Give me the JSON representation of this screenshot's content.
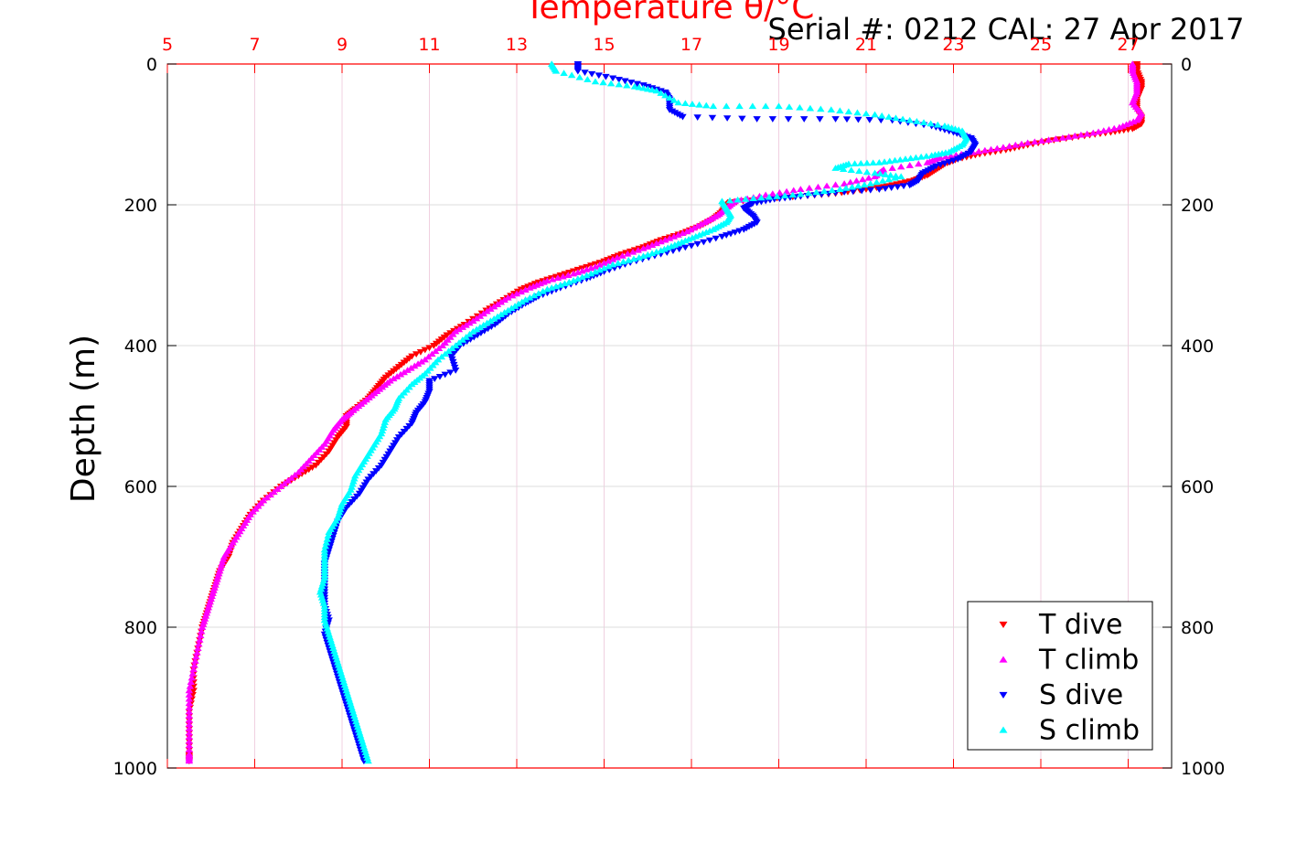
{
  "chart_data": {
    "type": "scatter",
    "title": "Serial #: 0212  CAL: 27 Apr 2017",
    "xlabel": "Temperature θ/°C",
    "ylabel": "Depth (m)",
    "xlim": [
      5,
      28
    ],
    "ylim": [
      1000,
      0
    ],
    "x_ticks": [
      "5",
      "7",
      "9",
      "11",
      "13",
      "15",
      "17",
      "19",
      "21",
      "23",
      "25",
      "27"
    ],
    "y_ticks": [
      "0",
      "200",
      "400",
      "600",
      "800",
      "1000"
    ],
    "grid": true,
    "legend_position": "bottom-right",
    "series": [
      {
        "name": "T dive",
        "marker": "triangle-down",
        "color": "#ff0000",
        "points": [
          [
            27.2,
            0
          ],
          [
            27.2,
            10
          ],
          [
            27.3,
            25
          ],
          [
            27.3,
            35
          ],
          [
            27.2,
            50
          ],
          [
            27.2,
            65
          ],
          [
            27.3,
            75
          ],
          [
            27.3,
            85
          ],
          [
            27.1,
            92
          ],
          [
            26.6,
            97
          ],
          [
            26.0,
            102
          ],
          [
            25.3,
            108
          ],
          [
            24.7,
            115
          ],
          [
            24.2,
            122
          ],
          [
            23.6,
            128
          ],
          [
            23.1,
            135
          ],
          [
            22.8,
            142
          ],
          [
            22.6,
            150
          ],
          [
            22.4,
            158
          ],
          [
            22.1,
            165
          ],
          [
            21.6,
            172
          ],
          [
            21.0,
            178
          ],
          [
            20.3,
            184
          ],
          [
            19.5,
            188
          ],
          [
            18.6,
            192
          ],
          [
            17.9,
            196
          ],
          [
            17.8,
            202
          ],
          [
            17.7,
            210
          ],
          [
            17.5,
            220
          ],
          [
            17.2,
            230
          ],
          [
            16.8,
            240
          ],
          [
            16.3,
            250
          ],
          [
            15.9,
            260
          ],
          [
            15.4,
            270
          ],
          [
            15.0,
            280
          ],
          [
            14.5,
            290
          ],
          [
            14.0,
            300
          ],
          [
            13.5,
            310
          ],
          [
            13.1,
            320
          ],
          [
            12.7,
            335
          ],
          [
            12.3,
            350
          ],
          [
            11.8,
            370
          ],
          [
            11.4,
            385
          ],
          [
            11.1,
            400
          ],
          [
            10.6,
            415
          ],
          [
            10.3,
            430
          ],
          [
            10.0,
            445
          ],
          [
            9.8,
            460
          ],
          [
            9.6,
            475
          ],
          [
            9.3,
            490
          ],
          [
            9.1,
            500
          ],
          [
            9.1,
            515
          ],
          [
            8.9,
            530
          ],
          [
            8.7,
            550
          ],
          [
            8.4,
            570
          ],
          [
            8.0,
            585
          ],
          [
            7.6,
            600
          ],
          [
            7.2,
            620
          ],
          [
            6.9,
            640
          ],
          [
            6.7,
            660
          ],
          [
            6.5,
            680
          ],
          [
            6.4,
            700
          ],
          [
            6.2,
            720
          ],
          [
            6.1,
            740
          ],
          [
            6.0,
            760
          ],
          [
            5.9,
            780
          ],
          [
            5.8,
            800
          ],
          [
            5.7,
            830
          ],
          [
            5.6,
            860
          ],
          [
            5.6,
            890
          ],
          [
            5.5,
            920
          ],
          [
            5.5,
            950
          ],
          [
            5.5,
            980
          ],
          [
            5.5,
            990
          ]
        ]
      },
      {
        "name": "T climb",
        "marker": "triangle-up",
        "color": "#ff00ff",
        "points": [
          [
            27.1,
            0
          ],
          [
            27.1,
            10
          ],
          [
            27.2,
            25
          ],
          [
            27.2,
            40
          ],
          [
            27.1,
            55
          ],
          [
            27.3,
            70
          ],
          [
            27.2,
            80
          ],
          [
            26.8,
            90
          ],
          [
            26.2,
            98
          ],
          [
            25.5,
            105
          ],
          [
            24.7,
            112
          ],
          [
            24.0,
            120
          ],
          [
            23.3,
            127
          ],
          [
            22.7,
            133
          ],
          [
            22.4,
            140
          ],
          [
            21.4,
            150
          ],
          [
            21.2,
            160
          ],
          [
            20.5,
            170
          ],
          [
            19.5,
            178
          ],
          [
            18.7,
            186
          ],
          [
            18.0,
            195
          ],
          [
            17.8,
            205
          ],
          [
            17.6,
            215
          ],
          [
            17.3,
            225
          ],
          [
            16.9,
            238
          ],
          [
            16.4,
            250
          ],
          [
            15.9,
            262
          ],
          [
            15.3,
            275
          ],
          [
            14.8,
            288
          ],
          [
            14.3,
            298
          ],
          [
            13.7,
            308
          ],
          [
            13.3,
            318
          ],
          [
            12.8,
            332
          ],
          [
            12.4,
            348
          ],
          [
            12.0,
            365
          ],
          [
            11.6,
            380
          ],
          [
            11.3,
            400
          ],
          [
            10.9,
            420
          ],
          [
            10.5,
            435
          ],
          [
            10.1,
            450
          ],
          [
            9.8,
            465
          ],
          [
            9.5,
            480
          ],
          [
            9.2,
            495
          ],
          [
            9.0,
            505
          ],
          [
            8.8,
            520
          ],
          [
            8.6,
            540
          ],
          [
            8.3,
            560
          ],
          [
            8.0,
            580
          ],
          [
            7.6,
            600
          ],
          [
            7.2,
            620
          ],
          [
            6.9,
            640
          ],
          [
            6.7,
            660
          ],
          [
            6.5,
            680
          ],
          [
            6.3,
            700
          ],
          [
            6.2,
            720
          ],
          [
            6.1,
            740
          ],
          [
            6.0,
            760
          ],
          [
            5.9,
            780
          ],
          [
            5.8,
            800
          ],
          [
            5.7,
            830
          ],
          [
            5.6,
            860
          ],
          [
            5.5,
            890
          ],
          [
            5.5,
            920
          ],
          [
            5.5,
            950
          ],
          [
            5.5,
            980
          ],
          [
            5.5,
            990
          ]
        ]
      },
      {
        "name": "S dive",
        "marker": "triangle-down",
        "color": "#0000ff",
        "points": [
          [
            14.4,
            0
          ],
          [
            14.4,
            10
          ],
          [
            15.2,
            20
          ],
          [
            15.9,
            30
          ],
          [
            16.4,
            40
          ],
          [
            16.5,
            50
          ],
          [
            16.5,
            65
          ],
          [
            16.8,
            75
          ],
          [
            18.5,
            78
          ],
          [
            20.3,
            78
          ],
          [
            21.6,
            80
          ],
          [
            22.5,
            88
          ],
          [
            23.0,
            97
          ],
          [
            23.4,
            105
          ],
          [
            23.5,
            115
          ],
          [
            23.4,
            125
          ],
          [
            23.1,
            135
          ],
          [
            22.6,
            145
          ],
          [
            22.3,
            155
          ],
          [
            22.2,
            165
          ],
          [
            22.0,
            172
          ],
          [
            21.3,
            178
          ],
          [
            20.3,
            183
          ],
          [
            19.5,
            188
          ],
          [
            18.9,
            192
          ],
          [
            18.4,
            198
          ],
          [
            18.2,
            205
          ],
          [
            18.4,
            215
          ],
          [
            18.5,
            225
          ],
          [
            18.2,
            235
          ],
          [
            17.7,
            245
          ],
          [
            17.0,
            258
          ],
          [
            16.3,
            270
          ],
          [
            15.6,
            282
          ],
          [
            15.0,
            295
          ],
          [
            14.6,
            305
          ],
          [
            14.0,
            318
          ],
          [
            13.5,
            330
          ],
          [
            13.2,
            340
          ],
          [
            12.8,
            355
          ],
          [
            12.5,
            370
          ],
          [
            12.1,
            385
          ],
          [
            11.7,
            400
          ],
          [
            11.5,
            415
          ],
          [
            11.6,
            435
          ],
          [
            11.0,
            450
          ],
          [
            11.0,
            465
          ],
          [
            10.9,
            480
          ],
          [
            10.7,
            495
          ],
          [
            10.6,
            510
          ],
          [
            10.3,
            530
          ],
          [
            10.1,
            550
          ],
          [
            9.9,
            570
          ],
          [
            9.6,
            590
          ],
          [
            9.4,
            610
          ],
          [
            9.1,
            630
          ],
          [
            8.9,
            650
          ],
          [
            8.8,
            670
          ],
          [
            8.7,
            690
          ],
          [
            8.6,
            710
          ],
          [
            8.6,
            730
          ],
          [
            8.6,
            750
          ],
          [
            8.6,
            770
          ],
          [
            8.7,
            790
          ],
          [
            8.6,
            810
          ],
          [
            8.7,
            830
          ],
          [
            8.8,
            850
          ],
          [
            8.9,
            870
          ],
          [
            9.0,
            890
          ],
          [
            9.1,
            910
          ],
          [
            9.2,
            930
          ],
          [
            9.3,
            950
          ],
          [
            9.4,
            970
          ],
          [
            9.5,
            990
          ]
        ]
      },
      {
        "name": "S climb",
        "marker": "triangle-up",
        "color": "#00ffff",
        "points": [
          [
            13.8,
            0
          ],
          [
            13.9,
            10
          ],
          [
            14.8,
            25
          ],
          [
            15.7,
            32
          ],
          [
            16.2,
            38
          ],
          [
            16.7,
            55
          ],
          [
            17.5,
            60
          ],
          [
            19.0,
            60
          ],
          [
            20.2,
            65
          ],
          [
            21.2,
            72
          ],
          [
            22.0,
            80
          ],
          [
            22.8,
            88
          ],
          [
            23.2,
            95
          ],
          [
            23.3,
            105
          ],
          [
            23.2,
            115
          ],
          [
            22.9,
            125
          ],
          [
            22.5,
            130
          ],
          [
            21.9,
            135
          ],
          [
            21.3,
            140
          ],
          [
            20.6,
            142
          ],
          [
            20.3,
            148
          ],
          [
            21.2,
            155
          ],
          [
            21.8,
            160
          ],
          [
            21.1,
            170
          ],
          [
            20.4,
            178
          ],
          [
            19.5,
            185
          ],
          [
            18.6,
            190
          ],
          [
            17.7,
            195
          ],
          [
            17.8,
            205
          ],
          [
            17.9,
            215
          ],
          [
            17.8,
            225
          ],
          [
            17.5,
            235
          ],
          [
            17.1,
            245
          ],
          [
            16.7,
            255
          ],
          [
            16.3,
            265
          ],
          [
            15.8,
            275
          ],
          [
            15.2,
            285
          ],
          [
            14.7,
            298
          ],
          [
            14.2,
            310
          ],
          [
            13.7,
            320
          ],
          [
            13.2,
            335
          ],
          [
            12.8,
            350
          ],
          [
            12.4,
            365
          ],
          [
            12.0,
            380
          ],
          [
            11.6,
            400
          ],
          [
            11.2,
            420
          ],
          [
            10.9,
            440
          ],
          [
            10.6,
            455
          ],
          [
            10.3,
            475
          ],
          [
            10.2,
            490
          ],
          [
            10.0,
            505
          ],
          [
            9.9,
            525
          ],
          [
            9.7,
            545
          ],
          [
            9.5,
            565
          ],
          [
            9.3,
            585
          ],
          [
            9.2,
            605
          ],
          [
            9.0,
            625
          ],
          [
            8.9,
            645
          ],
          [
            8.7,
            665
          ],
          [
            8.6,
            690
          ],
          [
            8.6,
            710
          ],
          [
            8.6,
            730
          ],
          [
            8.5,
            750
          ],
          [
            8.6,
            770
          ],
          [
            8.6,
            790
          ],
          [
            8.7,
            810
          ],
          [
            8.8,
            830
          ],
          [
            8.9,
            850
          ],
          [
            9.0,
            870
          ],
          [
            9.1,
            890
          ],
          [
            9.2,
            910
          ],
          [
            9.3,
            930
          ],
          [
            9.4,
            950
          ],
          [
            9.5,
            970
          ],
          [
            9.6,
            990
          ]
        ]
      }
    ]
  }
}
